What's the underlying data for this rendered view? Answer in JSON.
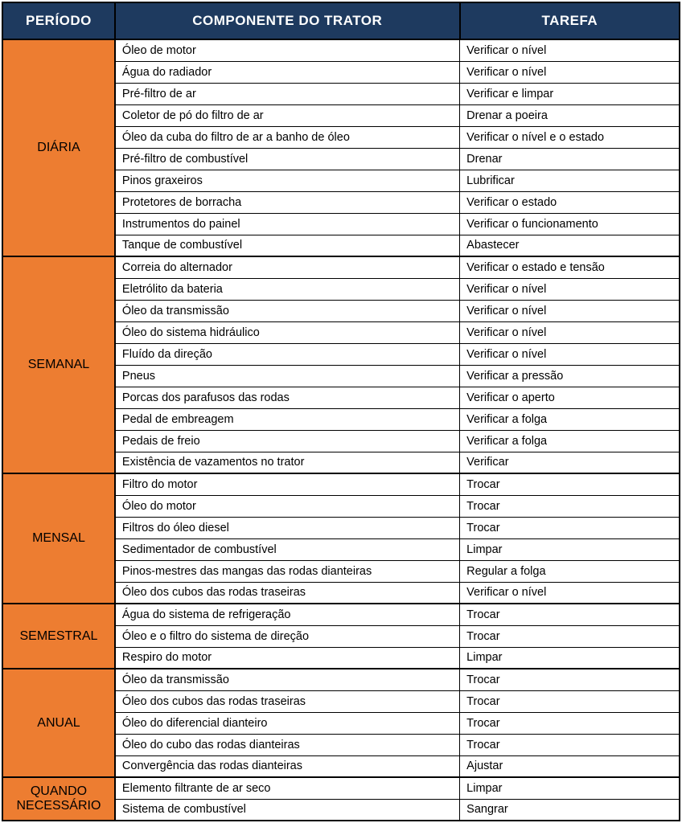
{
  "colors": {
    "header_bg": "#1e3a5f",
    "period_bg": "#ed7d31",
    "period_text": "#000000",
    "cell_bg": "#ffffff",
    "text_color": "#000000",
    "border_color": "#000000"
  },
  "columns": {
    "period": "PERÍODO",
    "component": "COMPONENTE DO TRATOR",
    "task": "TAREFA"
  },
  "widths": {
    "period": 140,
    "component": 430,
    "task": 274
  },
  "font": {
    "header_size": 17,
    "period_size": 16,
    "cell_size": 14.5
  },
  "sections": [
    {
      "period": "DIÁRIA",
      "rows": [
        {
          "component": "Óleo de motor",
          "task": "Verificar o nível"
        },
        {
          "component": "Água do radiador",
          "task": "Verificar o nível"
        },
        {
          "component": "Pré-filtro de ar",
          "task": "Verificar e limpar"
        },
        {
          "component": "Coletor de pó do filtro de ar",
          "task": "Drenar a poeira"
        },
        {
          "component": "Óleo da cuba do filtro de ar a banho de óleo",
          "task": "Verificar o nível e o estado"
        },
        {
          "component": "Pré-filtro de combustível",
          "task": "Drenar"
        },
        {
          "component": "Pinos graxeiros",
          "task": "Lubrificar"
        },
        {
          "component": "Protetores de borracha",
          "task": "Verificar o estado"
        },
        {
          "component": "Instrumentos do painel",
          "task": "Verificar o funcionamento"
        },
        {
          "component": "Tanque de combustível",
          "task": "Abastecer"
        }
      ]
    },
    {
      "period": "SEMANAL",
      "rows": [
        {
          "component": "Correia do alternador",
          "task": "Verificar o estado e tensão"
        },
        {
          "component": "Eletrólito da bateria",
          "task": "Verificar o nível"
        },
        {
          "component": "Óleo da transmissão",
          "task": "Verificar o nível"
        },
        {
          "component": "Óleo do sistema hidráulico",
          "task": "Verificar o nível"
        },
        {
          "component": "Fluído da direção",
          "task": "Verificar o nível"
        },
        {
          "component": "Pneus",
          "task": "Verificar a pressão"
        },
        {
          "component": "Porcas dos parafusos das rodas",
          "task": "Verificar o aperto"
        },
        {
          "component": "Pedal de embreagem",
          "task": "Verificar a folga"
        },
        {
          "component": "Pedais de freio",
          "task": "Verificar a folga"
        },
        {
          "component": "Existência de vazamentos no trator",
          "task": "Verificar"
        }
      ]
    },
    {
      "period": "MENSAL",
      "rows": [
        {
          "component": "Filtro do motor",
          "task": "Trocar"
        },
        {
          "component": "Óleo do motor",
          "task": "Trocar"
        },
        {
          "component": "Filtros do óleo diesel",
          "task": "Trocar"
        },
        {
          "component": "Sedimentador de combustível",
          "task": "Limpar"
        },
        {
          "component": "Pinos-mestres das mangas das rodas dianteiras",
          "task": "Regular a folga"
        },
        {
          "component": "Óleo dos cubos das rodas traseiras",
          "task": "Verificar o nível"
        }
      ]
    },
    {
      "period": "SEMESTRAL",
      "rows": [
        {
          "component": "Água do sistema de refrigeração",
          "task": "Trocar"
        },
        {
          "component": "Óleo e o filtro do sistema de direção",
          "task": "Trocar"
        },
        {
          "component": "Respiro do motor",
          "task": "Limpar"
        }
      ]
    },
    {
      "period": "ANUAL",
      "rows": [
        {
          "component": "Óleo da transmissão",
          "task": "Trocar"
        },
        {
          "component": "Óleo dos cubos das rodas traseiras",
          "task": "Trocar"
        },
        {
          "component": "Óleo do diferencial dianteiro",
          "task": "Trocar"
        },
        {
          "component": "Óleo do cubo das rodas dianteiras",
          "task": "Trocar"
        },
        {
          "component": "Convergência das rodas dianteiras",
          "task": "Ajustar"
        }
      ]
    },
    {
      "period": "QUANDO NECESSÁRIO",
      "rows": [
        {
          "component": "Elemento filtrante de ar seco",
          "task": "Limpar"
        },
        {
          "component": "Sistema de combustível",
          "task": "Sangrar"
        }
      ]
    }
  ]
}
